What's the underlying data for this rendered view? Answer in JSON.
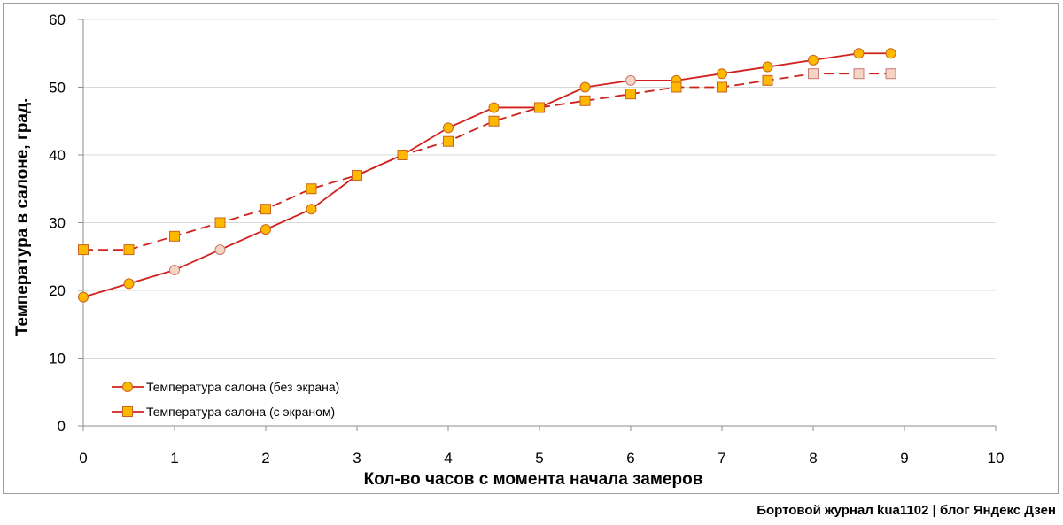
{
  "caption": "Бортовой журнал kua1102 | блог Яндекс Дзен",
  "chart_data": {
    "type": "line",
    "xlabel": "Кол-во часов с момента начала замеров",
    "ylabel": "Температура в салоне, град.",
    "xlim": [
      0,
      10
    ],
    "ylim": [
      0,
      60
    ],
    "xticks": [
      0,
      1,
      2,
      3,
      4,
      5,
      6,
      7,
      8,
      9,
      10
    ],
    "yticks": [
      0,
      10,
      20,
      30,
      40,
      50,
      60
    ],
    "grid": "horizontal",
    "legend_position": "bottom-left",
    "series": [
      {
        "name": "Температура салона (без экрана)",
        "marker": "circle",
        "line_style": "solid",
        "x": [
          0,
          0.5,
          1,
          1.5,
          2,
          2.5,
          3,
          3.5,
          4,
          4.5,
          5,
          5.5,
          6,
          6.5,
          7,
          7.5,
          8,
          8.5,
          8.85
        ],
        "y": [
          19,
          21,
          23,
          26,
          29,
          32,
          37,
          40,
          44,
          47,
          47,
          50,
          51,
          51,
          52,
          53,
          54,
          55,
          55
        ],
        "pale_points": [
          2,
          3,
          12
        ]
      },
      {
        "name": "Температура салона (с экраном)",
        "marker": "square",
        "line_style": "dashed",
        "x": [
          0,
          0.5,
          1,
          1.5,
          2,
          2.5,
          3,
          3.5,
          4,
          4.5,
          5,
          5.5,
          6,
          6.5,
          7,
          7.5,
          8,
          8.5,
          8.85
        ],
        "y": [
          26,
          26,
          28,
          30,
          32,
          35,
          37,
          40,
          42,
          45,
          47,
          48,
          49,
          50,
          50,
          51,
          52,
          52,
          52
        ],
        "pale_points": [
          16,
          17,
          18
        ]
      }
    ]
  },
  "colors": {
    "line": "#d0211c",
    "marker_fill": "#ffb800",
    "marker_stroke": "#c8641c",
    "pale_fill": "#f6d4c2",
    "pale_stroke": "#c87878",
    "grid": "#d9d9d9",
    "axis": "#8c8c8c"
  }
}
